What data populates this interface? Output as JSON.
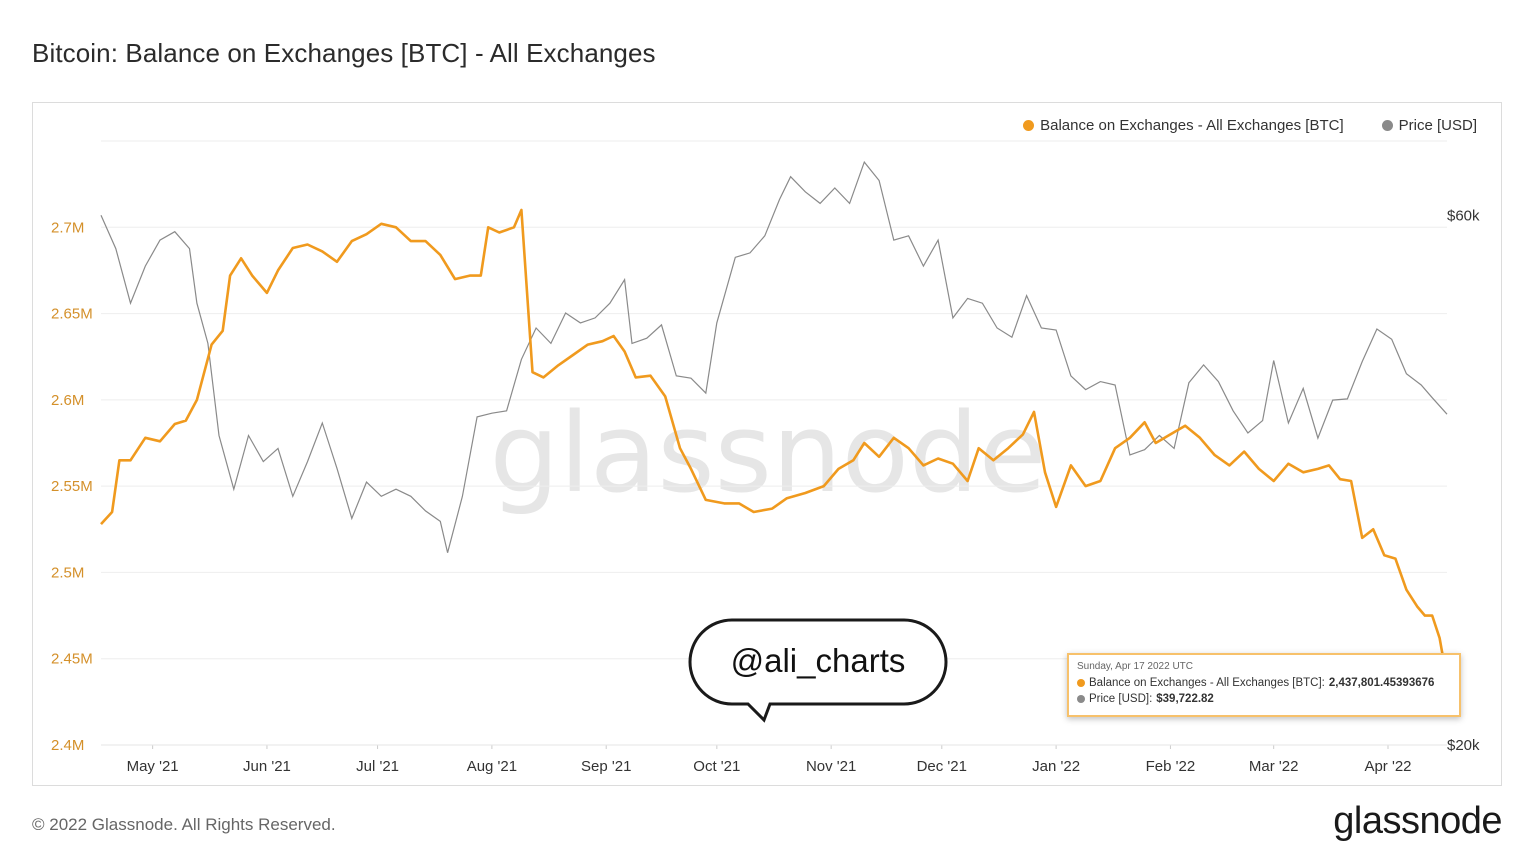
{
  "title": "Bitcoin: Balance on Exchanges [BTC] - All Exchanges",
  "footer": "© 2022 Glassnode. All Rights Reserved.",
  "brand": "glassnode",
  "watermark": "glassnode",
  "annotation": "@ali_charts",
  "colors": {
    "balance": "#f09a1e",
    "price": "#8a8a8a",
    "left_axis": "#d4902a"
  },
  "legend": {
    "balance": "Balance on Exchanges - All Exchanges [BTC]",
    "price": "Price [USD]"
  },
  "tooltip": {
    "date": "Sunday, Apr 17 2022 UTC",
    "balance_label": "Balance on Exchanges - All Exchanges [BTC]:",
    "balance_value": "2,437,801.45393676",
    "price_label": "Price [USD]:",
    "price_value": "$39,722.82"
  },
  "chart_data": {
    "type": "line",
    "title": "Bitcoin: Balance on Exchanges [BTC] - All Exchanges",
    "x_labels": [
      "May '21",
      "Jun '21",
      "Jul '21",
      "Aug '21",
      "Sep '21",
      "Oct '21",
      "Nov '21",
      "Dec '21",
      "Jan '22",
      "Feb '22",
      "Mar '22",
      "Apr '22"
    ],
    "x_range": [
      "2021-04-17",
      "2022-04-17"
    ],
    "y_left": {
      "ticks": [
        2400000,
        2450000,
        2500000,
        2550000,
        2600000,
        2650000,
        2700000
      ],
      "tick_labels": [
        "2.4M",
        "2.45M",
        "2.5M",
        "2.55M",
        "2.6M",
        "2.65M",
        "2.7M"
      ],
      "range": [
        2400000,
        2750000
      ]
    },
    "y_right": {
      "scale": "log",
      "ticks": [
        20000,
        60000
      ],
      "tick_labels": [
        "$20k",
        "$60k"
      ],
      "range": [
        20000,
        70000
      ]
    },
    "grid": true,
    "legend_position": "top-right",
    "series": [
      {
        "name": "Balance on Exchanges - All Exchanges [BTC]",
        "axis": "left",
        "points": [
          [
            "2021-04-17",
            2528000
          ],
          [
            "2021-04-20",
            2535000
          ],
          [
            "2021-04-22",
            2565000
          ],
          [
            "2021-04-25",
            2565000
          ],
          [
            "2021-04-29",
            2578000
          ],
          [
            "2021-05-03",
            2576000
          ],
          [
            "2021-05-07",
            2586000
          ],
          [
            "2021-05-10",
            2588000
          ],
          [
            "2021-05-13",
            2600000
          ],
          [
            "2021-05-17",
            2632000
          ],
          [
            "2021-05-20",
            2640000
          ],
          [
            "2021-05-22",
            2672000
          ],
          [
            "2021-05-25",
            2682000
          ],
          [
            "2021-05-28",
            2672000
          ],
          [
            "2021-06-01",
            2662000
          ],
          [
            "2021-06-04",
            2675000
          ],
          [
            "2021-06-08",
            2688000
          ],
          [
            "2021-06-12",
            2690000
          ],
          [
            "2021-06-16",
            2686000
          ],
          [
            "2021-06-20",
            2680000
          ],
          [
            "2021-06-24",
            2692000
          ],
          [
            "2021-06-28",
            2696000
          ],
          [
            "2021-07-02",
            2702000
          ],
          [
            "2021-07-06",
            2700000
          ],
          [
            "2021-07-10",
            2692000
          ],
          [
            "2021-07-14",
            2692000
          ],
          [
            "2021-07-18",
            2684000
          ],
          [
            "2021-07-22",
            2670000
          ],
          [
            "2021-07-26",
            2672000
          ],
          [
            "2021-07-29",
            2672000
          ],
          [
            "2021-07-31",
            2700000
          ],
          [
            "2021-08-03",
            2697000
          ],
          [
            "2021-08-07",
            2700000
          ],
          [
            "2021-08-09",
            2710000
          ],
          [
            "2021-08-12",
            2616000
          ],
          [
            "2021-08-15",
            2613000
          ],
          [
            "2021-08-19",
            2620000
          ],
          [
            "2021-08-23",
            2626000
          ],
          [
            "2021-08-27",
            2632000
          ],
          [
            "2021-08-31",
            2634000
          ],
          [
            "2021-09-03",
            2637000
          ],
          [
            "2021-09-06",
            2628000
          ],
          [
            "2021-09-09",
            2613000
          ],
          [
            "2021-09-13",
            2614000
          ],
          [
            "2021-09-17",
            2602000
          ],
          [
            "2021-09-21",
            2572000
          ],
          [
            "2021-09-24",
            2560000
          ],
          [
            "2021-09-28",
            2542000
          ],
          [
            "2021-10-03",
            2540000
          ],
          [
            "2021-10-07",
            2540000
          ],
          [
            "2021-10-11",
            2535000
          ],
          [
            "2021-10-16",
            2537000
          ],
          [
            "2021-10-20",
            2543000
          ],
          [
            "2021-10-25",
            2546000
          ],
          [
            "2021-10-30",
            2550000
          ],
          [
            "2021-11-03",
            2560000
          ],
          [
            "2021-11-07",
            2565000
          ],
          [
            "2021-11-10",
            2575000
          ],
          [
            "2021-11-14",
            2567000
          ],
          [
            "2021-11-18",
            2578000
          ],
          [
            "2021-11-22",
            2572000
          ],
          [
            "2021-11-26",
            2562000
          ],
          [
            "2021-11-30",
            2566000
          ],
          [
            "2021-12-04",
            2563000
          ],
          [
            "2021-12-08",
            2553000
          ],
          [
            "2021-12-11",
            2572000
          ],
          [
            "2021-12-15",
            2565000
          ],
          [
            "2021-12-19",
            2572000
          ],
          [
            "2021-12-23",
            2580000
          ],
          [
            "2021-12-26",
            2593000
          ],
          [
            "2021-12-29",
            2558000
          ],
          [
            "2022-01-01",
            2538000
          ],
          [
            "2022-01-05",
            2562000
          ],
          [
            "2022-01-09",
            2550000
          ],
          [
            "2022-01-13",
            2553000
          ],
          [
            "2022-01-17",
            2572000
          ],
          [
            "2022-01-21",
            2578000
          ],
          [
            "2022-01-25",
            2587000
          ],
          [
            "2022-01-28",
            2575000
          ],
          [
            "2022-02-01",
            2580000
          ],
          [
            "2022-02-05",
            2585000
          ],
          [
            "2022-02-09",
            2578000
          ],
          [
            "2022-02-13",
            2568000
          ],
          [
            "2022-02-17",
            2562000
          ],
          [
            "2022-02-21",
            2570000
          ],
          [
            "2022-02-25",
            2560000
          ],
          [
            "2022-03-01",
            2553000
          ],
          [
            "2022-03-05",
            2563000
          ],
          [
            "2022-03-09",
            2558000
          ],
          [
            "2022-03-13",
            2560000
          ],
          [
            "2022-03-16",
            2562000
          ],
          [
            "2022-03-19",
            2554000
          ],
          [
            "2022-03-22",
            2553000
          ],
          [
            "2022-03-25",
            2520000
          ],
          [
            "2022-03-28",
            2525000
          ],
          [
            "2022-03-31",
            2510000
          ],
          [
            "2022-04-03",
            2508000
          ],
          [
            "2022-04-06",
            2490000
          ],
          [
            "2022-04-09",
            2480000
          ],
          [
            "2022-04-11",
            2475000
          ],
          [
            "2022-04-13",
            2475000
          ],
          [
            "2022-04-15",
            2462000
          ],
          [
            "2022-04-17",
            2437801
          ]
        ]
      },
      {
        "name": "Price [USD]",
        "axis": "right",
        "points": [
          [
            "2021-04-17",
            60000
          ],
          [
            "2021-04-21",
            56000
          ],
          [
            "2021-04-25",
            50000
          ],
          [
            "2021-04-29",
            54000
          ],
          [
            "2021-05-03",
            57000
          ],
          [
            "2021-05-07",
            58000
          ],
          [
            "2021-05-11",
            56000
          ],
          [
            "2021-05-13",
            50000
          ],
          [
            "2021-05-16",
            46000
          ],
          [
            "2021-05-19",
            38000
          ],
          [
            "2021-05-23",
            34000
          ],
          [
            "2021-05-27",
            38000
          ],
          [
            "2021-05-31",
            36000
          ],
          [
            "2021-06-04",
            37000
          ],
          [
            "2021-06-08",
            33500
          ],
          [
            "2021-06-12",
            36000
          ],
          [
            "2021-06-16",
            39000
          ],
          [
            "2021-06-20",
            35500
          ],
          [
            "2021-06-24",
            32000
          ],
          [
            "2021-06-28",
            34500
          ],
          [
            "2021-07-02",
            33500
          ],
          [
            "2021-07-06",
            34000
          ],
          [
            "2021-07-10",
            33500
          ],
          [
            "2021-07-14",
            32500
          ],
          [
            "2021-07-18",
            31800
          ],
          [
            "2021-07-20",
            29800
          ],
          [
            "2021-07-24",
            33500
          ],
          [
            "2021-07-28",
            39500
          ],
          [
            "2021-08-01",
            39800
          ],
          [
            "2021-08-05",
            40000
          ],
          [
            "2021-08-09",
            44500
          ],
          [
            "2021-08-13",
            47500
          ],
          [
            "2021-08-17",
            46000
          ],
          [
            "2021-08-21",
            49000
          ],
          [
            "2021-08-25",
            48000
          ],
          [
            "2021-08-29",
            48500
          ],
          [
            "2021-09-02",
            50000
          ],
          [
            "2021-09-06",
            52500
          ],
          [
            "2021-09-08",
            46000
          ],
          [
            "2021-09-12",
            46500
          ],
          [
            "2021-09-16",
            47800
          ],
          [
            "2021-09-20",
            43000
          ],
          [
            "2021-09-24",
            42800
          ],
          [
            "2021-09-28",
            41500
          ],
          [
            "2021-10-01",
            48000
          ],
          [
            "2021-10-06",
            55000
          ],
          [
            "2021-10-10",
            55500
          ],
          [
            "2021-10-14",
            57500
          ],
          [
            "2021-10-18",
            62000
          ],
          [
            "2021-10-21",
            65000
          ],
          [
            "2021-10-25",
            63000
          ],
          [
            "2021-10-29",
            61500
          ],
          [
            "2021-11-02",
            63500
          ],
          [
            "2021-11-06",
            61500
          ],
          [
            "2021-11-10",
            67000
          ],
          [
            "2021-11-14",
            64500
          ],
          [
            "2021-11-18",
            57000
          ],
          [
            "2021-11-22",
            57500
          ],
          [
            "2021-11-26",
            54000
          ],
          [
            "2021-11-30",
            57000
          ],
          [
            "2021-12-04",
            48500
          ],
          [
            "2021-12-08",
            50500
          ],
          [
            "2021-12-12",
            50000
          ],
          [
            "2021-12-16",
            47500
          ],
          [
            "2021-12-20",
            46600
          ],
          [
            "2021-12-24",
            50800
          ],
          [
            "2021-12-28",
            47500
          ],
          [
            "2022-01-01",
            47300
          ],
          [
            "2022-01-05",
            43000
          ],
          [
            "2022-01-09",
            41800
          ],
          [
            "2022-01-13",
            42500
          ],
          [
            "2022-01-17",
            42200
          ],
          [
            "2022-01-21",
            36500
          ],
          [
            "2022-01-25",
            36900
          ],
          [
            "2022-01-29",
            38000
          ],
          [
            "2022-02-02",
            37000
          ],
          [
            "2022-02-06",
            42400
          ],
          [
            "2022-02-10",
            44000
          ],
          [
            "2022-02-14",
            42500
          ],
          [
            "2022-02-18",
            40000
          ],
          [
            "2022-02-22",
            38200
          ],
          [
            "2022-02-26",
            39200
          ],
          [
            "2022-03-01",
            44400
          ],
          [
            "2022-03-05",
            39000
          ],
          [
            "2022-03-09",
            41900
          ],
          [
            "2022-03-13",
            37800
          ],
          [
            "2022-03-17",
            40900
          ],
          [
            "2022-03-21",
            41000
          ],
          [
            "2022-03-25",
            44300
          ],
          [
            "2022-03-29",
            47400
          ],
          [
            "2022-04-02",
            46400
          ],
          [
            "2022-04-06",
            43200
          ],
          [
            "2022-04-10",
            42200
          ],
          [
            "2022-04-13",
            41100
          ],
          [
            "2022-04-17",
            39722.82
          ]
        ]
      }
    ]
  }
}
